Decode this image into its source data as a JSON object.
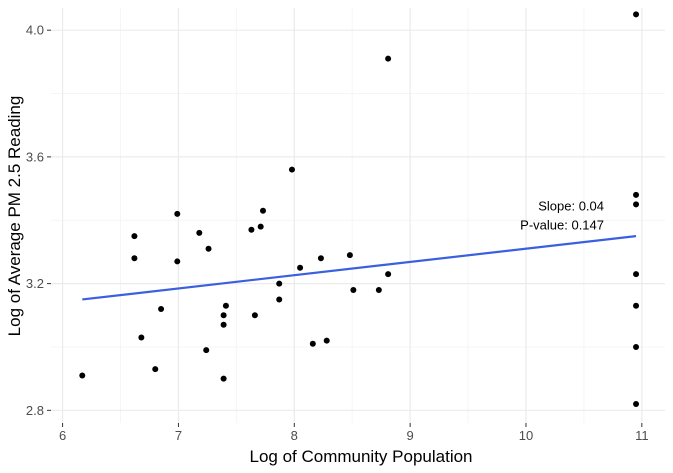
{
  "chart_data": {
    "type": "scatter",
    "title": "",
    "xlabel": "Log of Community Population",
    "ylabel": "Log of Average PM 2.5 Reading",
    "xlim": [
      5.9,
      11.2
    ],
    "ylim": [
      2.76,
      4.07
    ],
    "x_ticks": [
      6,
      7,
      8,
      9,
      10,
      11
    ],
    "y_ticks": [
      2.8,
      3.2,
      3.6,
      4.0
    ],
    "x_tick_labels": [
      "6",
      "7",
      "8",
      "9",
      "10",
      "11"
    ],
    "y_tick_labels": [
      "2.8",
      "3.2",
      "3.6",
      "4.0"
    ],
    "grid": true,
    "legend": "none",
    "points": [
      {
        "x": 6.17,
        "y": 2.91
      },
      {
        "x": 6.62,
        "y": 3.35
      },
      {
        "x": 6.62,
        "y": 3.28
      },
      {
        "x": 6.68,
        "y": 3.03
      },
      {
        "x": 6.8,
        "y": 2.93
      },
      {
        "x": 6.85,
        "y": 3.12
      },
      {
        "x": 6.99,
        "y": 3.42
      },
      {
        "x": 6.99,
        "y": 3.27
      },
      {
        "x": 7.18,
        "y": 3.36
      },
      {
        "x": 7.24,
        "y": 2.99
      },
      {
        "x": 7.26,
        "y": 3.31
      },
      {
        "x": 7.39,
        "y": 3.1
      },
      {
        "x": 7.39,
        "y": 3.07
      },
      {
        "x": 7.39,
        "y": 2.9
      },
      {
        "x": 7.41,
        "y": 3.13
      },
      {
        "x": 7.63,
        "y": 3.37
      },
      {
        "x": 7.66,
        "y": 3.1
      },
      {
        "x": 7.71,
        "y": 3.38
      },
      {
        "x": 7.73,
        "y": 3.43
      },
      {
        "x": 7.87,
        "y": 3.2
      },
      {
        "x": 7.87,
        "y": 3.15
      },
      {
        "x": 7.98,
        "y": 3.56
      },
      {
        "x": 8.05,
        "y": 3.25
      },
      {
        "x": 8.16,
        "y": 3.01
      },
      {
        "x": 8.23,
        "y": 3.28
      },
      {
        "x": 8.28,
        "y": 3.02
      },
      {
        "x": 8.48,
        "y": 3.29
      },
      {
        "x": 8.51,
        "y": 3.18
      },
      {
        "x": 8.73,
        "y": 3.18
      },
      {
        "x": 8.81,
        "y": 3.91
      },
      {
        "x": 8.81,
        "y": 3.23
      },
      {
        "x": 10.95,
        "y": 4.05
      },
      {
        "x": 10.95,
        "y": 3.48
      },
      {
        "x": 10.95,
        "y": 3.45
      },
      {
        "x": 10.95,
        "y": 3.23
      },
      {
        "x": 10.95,
        "y": 3.13
      },
      {
        "x": 10.95,
        "y": 3.0
      },
      {
        "x": 10.95,
        "y": 2.82
      }
    ],
    "trend_line": {
      "x": [
        6.17,
        10.95
      ],
      "y": [
        3.15,
        3.35
      ],
      "color": "#3a5fe0"
    },
    "annotations": [
      "Slope: 0.04",
      "P-value: 0.147"
    ],
    "colors": {
      "panel_bg": "#ffffff",
      "grid_major": "#ebebeb",
      "grid_minor": "#f5f5f5",
      "point": "#000000"
    }
  }
}
